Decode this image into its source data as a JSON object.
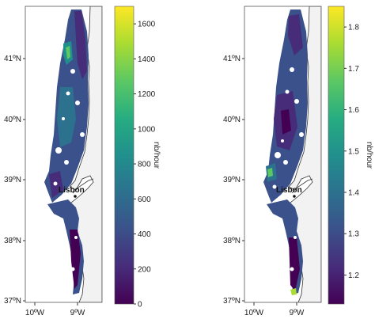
{
  "panels": [
    {
      "id": "left",
      "y_ticks": [
        "41ºN",
        "40ºN",
        "39ºN",
        "38ºN",
        "37ºN"
      ],
      "x_ticks": [
        "10ºW",
        "9ºW"
      ],
      "city": "Lisbon",
      "colorbar": {
        "unit": "nb/hour",
        "ticks": [
          "0",
          "200",
          "400",
          "600",
          "800",
          "1000",
          "1200",
          "1400",
          "1600"
        ],
        "min": 0,
        "max": 1700
      }
    },
    {
      "id": "right",
      "y_ticks": [
        "41ºN",
        "40ºN",
        "39ºN",
        "38ºN",
        "37ºN"
      ],
      "x_ticks": [
        "10ºW",
        "9ºW"
      ],
      "city": "Lisbon",
      "colorbar": {
        "unit": "nb/hour",
        "ticks": [
          "1.2",
          "1.3",
          "1.4",
          "1.5",
          "1.6",
          "1.7",
          "1.8"
        ],
        "min": 1.13,
        "max": 1.85
      }
    }
  ],
  "colors": {
    "land": "#f2f2f2",
    "coast": "#333333",
    "viridis": [
      "#440154",
      "#472c7a",
      "#3b518b",
      "#2c718e",
      "#21908d",
      "#27ad81",
      "#5cc863",
      "#aadc32",
      "#fde725"
    ]
  }
}
